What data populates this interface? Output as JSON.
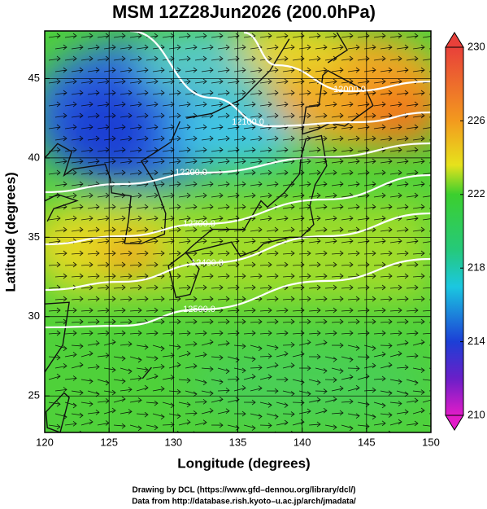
{
  "title": "MSM 12Z28Jun2026 (200.0hPa)",
  "x_axis": {
    "label": "Longitude (degrees)",
    "lim": [
      120,
      150
    ],
    "ticks": [
      120,
      125,
      130,
      135,
      140,
      145,
      150
    ]
  },
  "y_axis": {
    "label": "Latitude  (degrees)",
    "lim": [
      22.7,
      48.0
    ],
    "ticks": [
      25,
      30,
      35,
      40,
      45
    ]
  },
  "grid": true,
  "colorbar": {
    "lim": [
      210,
      230
    ],
    "ticks": [
      210,
      214,
      218,
      222,
      226,
      230
    ]
  },
  "contour_labels": [
    "12000.0",
    "12100.0",
    "12200.0",
    "12300.0",
    "12400.0",
    "12500.0"
  ],
  "credits": [
    "Drawing by DCL (https://www.gfd–dennou.org/library/dcl/)",
    "Data from http://database.rish.kyoto–u.ac.jp/arch/jmadata/"
  ]
}
